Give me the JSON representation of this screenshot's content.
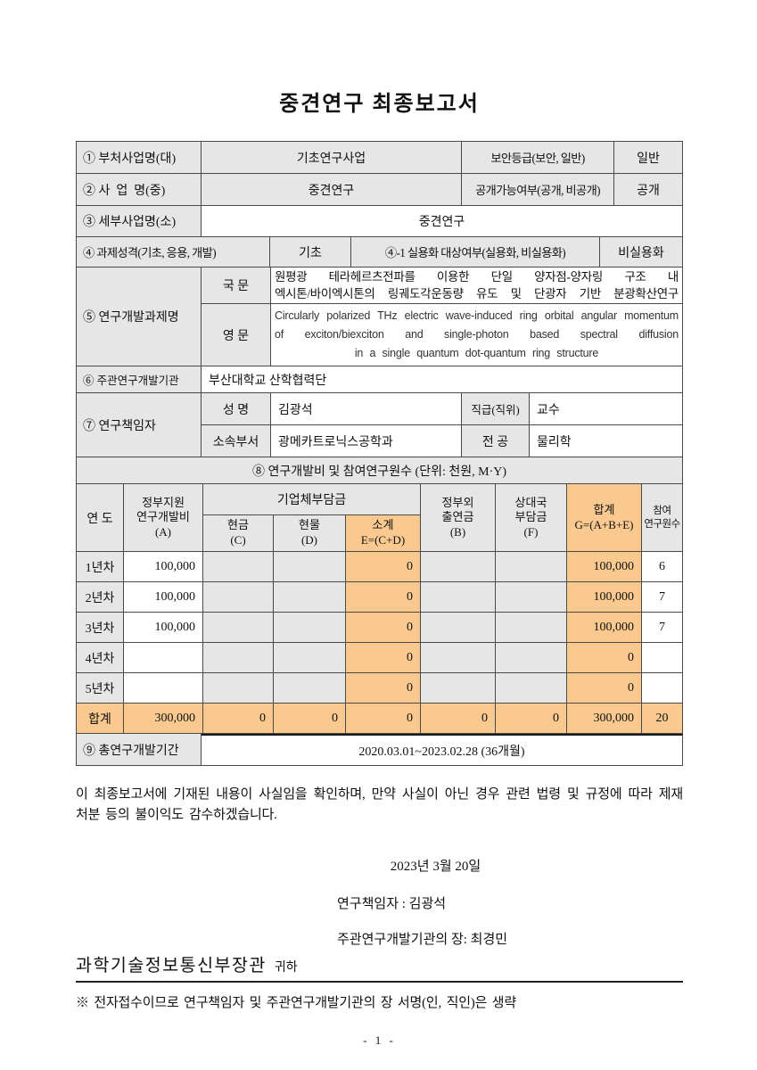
{
  "colors": {
    "accent_orange": "#f9c990",
    "cell_gray": "#e6e6e6"
  },
  "page": {
    "title": "중견연구 최종보고서",
    "page_number": "- 1 -"
  },
  "info": {
    "row1": {
      "label": "① 부처사업명(대)",
      "value": "기초연구사업",
      "label2": "보안등급(보안, 일반)",
      "value2": "일반"
    },
    "row2": {
      "label": "② 사  업  명(중)",
      "value": "중견연구",
      "label2": "공개가능여부(공개, 비공개)",
      "value2": "공개"
    },
    "row3": {
      "label": "③ 세부사업명(소)",
      "value": "중견연구"
    },
    "row4": {
      "label": "④ 과제성격(기초, 응용, 개발)",
      "value": "기초",
      "label2": "④-1 실용화 대상여부(실용화, 비실용화)",
      "value2": "비실용화"
    },
    "row5": {
      "label": "⑤ 연구개발과제명",
      "kor_label": "국 문",
      "kor_lines": [
        "원평광 테라헤르츠전파를 이용한 단일 양자점-양자링 구조 내",
        "엑시톤/바이엑시톤의 링궤도각운동량 유도 및 단광자 기반 분광확산연구"
      ],
      "eng_label": "영 문",
      "eng_lines": [
        "Circularly polarized THz electric wave-induced ring orbital angular momentum",
        "of exciton/biexciton and single-photon based spectral diffusion",
        "in a single quantum dot-quantum ring structure"
      ]
    },
    "row6": {
      "label": "⑥ 주관연구개발기관",
      "value": "부산대학교 산학협력단"
    },
    "row7": {
      "label": "⑦ 연구책임자",
      "name_label": "성 명",
      "name": "김광석",
      "rank_label": "직급(직위)",
      "rank": "교수",
      "dept_label": "소속부서",
      "dept": "광메카트로닉스공학과",
      "major_label": "전 공",
      "major": "물리학"
    }
  },
  "budget": {
    "banner": "⑧ 연구개발비 및 참여연구원수 (단위: 천원, M·Y)",
    "headers": {
      "year": "연 도",
      "a": "정부지원\n연구개발비\n(A)",
      "group": "기업체부담금",
      "c": "현금\n(C)",
      "d": "현물\n(D)",
      "e": "소계\nE=(C+D)",
      "b": "정부외\n출연금\n(B)",
      "f": "상대국\n부담금\n(F)",
      "g": "합계\nG=(A+B+E)",
      "m": "참여\n연구원수"
    },
    "rows": [
      {
        "year": "1년차",
        "a": "100,000",
        "c": "",
        "d": "",
        "e": "0",
        "b": "",
        "f": "",
        "g": "100,000",
        "m": "6"
      },
      {
        "year": "2년차",
        "a": "100,000",
        "c": "",
        "d": "",
        "e": "0",
        "b": "",
        "f": "",
        "g": "100,000",
        "m": "7"
      },
      {
        "year": "3년차",
        "a": "100,000",
        "c": "",
        "d": "",
        "e": "0",
        "b": "",
        "f": "",
        "g": "100,000",
        "m": "7"
      },
      {
        "year": "4년차",
        "a": "",
        "c": "",
        "d": "",
        "e": "0",
        "b": "",
        "f": "",
        "g": "0",
        "m": ""
      },
      {
        "year": "5년차",
        "a": "",
        "c": "",
        "d": "",
        "e": "0",
        "b": "",
        "f": "",
        "g": "0",
        "m": ""
      }
    ],
    "total": {
      "year": "합계",
      "a": "300,000",
      "c": "0",
      "d": "0",
      "e": "0",
      "b": "0",
      "f": "0",
      "g": "300,000",
      "m": "20"
    }
  },
  "period": {
    "label": "⑨ 총연구개발기간",
    "value": "2020.03.01~2023.02.28 (36개월)"
  },
  "declaration": "이 최종보고서에 기재된 내용이 사실임을 확인하며, 만약 사실이 아닌 경우 관련 법령 및 규정에 따라 제재 처분 등의 불이익도 감수하겠습니다.",
  "signature": {
    "date": "2023년 3월 20일",
    "researcher": "연구책임자 : 김광석",
    "head": "주관연구개발기관의 장: 최경민",
    "recipient": "과학기술정보통신부장관",
    "recipient_suffix": "귀하",
    "note": "※ 전자접수이므로 연구책임자 및 주관연구개발기관의 장 서명(인, 직인)은 생략"
  }
}
